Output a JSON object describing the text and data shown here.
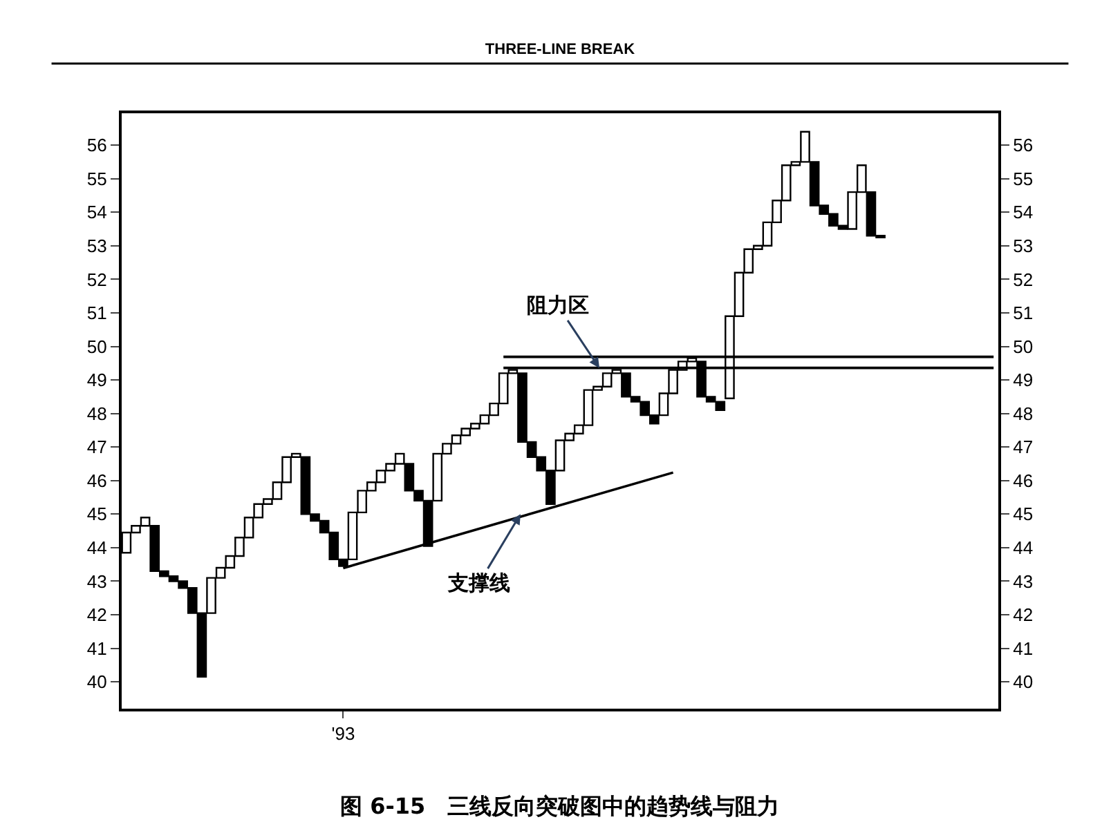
{
  "chart_data": {
    "type": "bar",
    "title": "THREE-LINE BREAK",
    "categories": [
      null,
      null,
      null,
      null,
      null,
      null,
      null,
      null,
      null,
      null,
      null,
      null,
      null,
      null,
      null,
      null,
      null,
      null,
      null,
      null,
      null,
      null,
      null,
      "'93",
      null,
      null,
      null,
      null,
      null,
      null,
      null,
      null,
      null,
      null,
      null,
      null,
      null,
      null,
      null,
      null,
      null,
      null,
      null,
      null,
      null,
      null,
      null,
      null,
      null,
      null,
      null,
      null,
      null,
      null,
      null,
      null,
      null,
      null,
      null,
      null,
      null,
      null,
      null,
      null,
      null,
      null,
      null,
      null,
      null,
      null,
      null,
      null,
      null,
      null,
      null,
      null,
      null,
      null,
      null,
      null,
      null,
      null,
      null,
      null,
      null,
      null,
      null,
      null,
      null,
      null,
      null,
      null,
      null
    ],
    "series": [
      {
        "base": [
          43.85,
          44.45,
          44.65,
          43.3,
          43.15,
          43.0,
          42.8,
          42.05,
          40.15,
          42.05,
          43.1,
          43.4,
          43.75,
          44.3,
          44.9,
          45.3,
          45.45,
          45.95,
          46.7,
          45.0,
          44.8,
          44.45,
          43.65,
          43.45,
          43.65,
          45.05,
          45.7,
          45.95,
          46.3,
          46.5,
          45.7,
          45.4,
          44.05,
          45.4,
          46.8,
          47.1,
          47.35,
          47.55,
          47.7,
          47.95,
          48.3,
          49.2,
          47.15,
          46.7,
          46.3,
          45.3,
          46.3,
          47.2,
          47.4,
          47.65,
          48.7,
          48.8,
          49.2,
          48.5,
          48.35,
          47.95,
          47.7,
          47.95,
          48.6,
          49.3,
          49.55,
          48.5,
          48.35,
          48.1,
          48.45,
          50.9,
          52.2,
          52.9,
          53.0,
          53.7,
          54.35,
          55.4,
          55.5,
          54.2,
          53.95,
          53.6,
          53.5,
          53.5,
          54.6,
          53.3,
          53.25,
          null,
          null,
          null,
          null,
          null,
          null,
          null,
          null,
          null,
          null,
          null,
          null
        ],
        "values": [
          0.6,
          0.2,
          0.25,
          1.35,
          0.15,
          0.15,
          0.2,
          0.75,
          1.9,
          1.05,
          0.3,
          0.35,
          0.55,
          0.6,
          0.4,
          0.15,
          0.5,
          0.75,
          0.1,
          1.7,
          0.2,
          0.35,
          0.8,
          0.2,
          1.4,
          0.65,
          0.25,
          0.35,
          0.2,
          0.3,
          0.8,
          0.3,
          1.35,
          1.4,
          0.3,
          0.25,
          0.2,
          0.15,
          0.25,
          0.35,
          0.9,
          0.1,
          2.05,
          0.45,
          0.4,
          1.0,
          0.9,
          0.2,
          0.25,
          1.05,
          0.1,
          0.4,
          0.1,
          0.7,
          0.15,
          0.4,
          0.25,
          0.65,
          0.7,
          0.25,
          0.1,
          1.05,
          0.15,
          0.25,
          2.45,
          1.3,
          0.7,
          0.1,
          0.7,
          0.65,
          1.05,
          0.1,
          0.9,
          1.3,
          0.25,
          0.35,
          0.1,
          1.1,
          0.8,
          1.3,
          0.05,
          null,
          null,
          null,
          null,
          null,
          null,
          null,
          null,
          null,
          null,
          null,
          null
        ],
        "colors": [
          "#ffffff",
          "#ffffff",
          "#ffffff",
          "#000000",
          "#000000",
          "#000000",
          "#000000",
          "#000000",
          "#000000",
          "#ffffff",
          "#ffffff",
          "#ffffff",
          "#ffffff",
          "#ffffff",
          "#ffffff",
          "#ffffff",
          "#ffffff",
          "#ffffff",
          "#ffffff",
          "#000000",
          "#000000",
          "#000000",
          "#000000",
          "#000000",
          "#ffffff",
          "#ffffff",
          "#ffffff",
          "#ffffff",
          "#ffffff",
          "#ffffff",
          "#000000",
          "#000000",
          "#000000",
          "#ffffff",
          "#ffffff",
          "#ffffff",
          "#ffffff",
          "#ffffff",
          "#ffffff",
          "#ffffff",
          "#ffffff",
          "#ffffff",
          "#000000",
          "#000000",
          "#000000",
          "#000000",
          "#ffffff",
          "#ffffff",
          "#ffffff",
          "#ffffff",
          "#ffffff",
          "#ffffff",
          "#ffffff",
          "#000000",
          "#000000",
          "#000000",
          "#000000",
          "#ffffff",
          "#ffffff",
          "#ffffff",
          "#ffffff",
          "#000000",
          "#000000",
          "#000000",
          "#ffffff",
          "#ffffff",
          "#ffffff",
          "#ffffff",
          "#ffffff",
          "#ffffff",
          "#ffffff",
          "#ffffff",
          "#ffffff",
          "#000000",
          "#000000",
          "#000000",
          "#000000",
          "#ffffff",
          "#ffffff",
          "#000000",
          "#000000",
          "#ffffff",
          "#ffffff",
          "#ffffff",
          "#ffffff",
          "#ffffff",
          "#ffffff",
          "#ffffff",
          "#ffffff",
          "#ffffff",
          "#ffffff",
          "#ffffff",
          "#ffffff"
        ]
      },
      {
        "type": "line",
        "color": "#000000",
        "values": [
          null,
          null,
          null,
          null,
          null,
          null,
          null,
          null,
          null,
          null,
          null,
          null,
          null,
          null,
          null,
          null,
          null,
          null,
          null,
          null,
          null,
          null,
          null,
          43.39,
          null,
          null,
          null,
          null,
          null,
          null,
          null,
          null,
          null,
          null,
          null,
          null,
          null,
          null,
          null,
          null,
          null,
          null,
          null,
          null,
          null,
          null,
          null,
          null,
          null,
          null,
          null,
          null,
          null,
          null,
          null,
          null,
          null,
          null,
          46.24,
          null,
          null,
          null,
          null,
          null,
          null,
          null,
          null,
          null,
          null,
          null,
          null,
          null,
          null,
          null,
          null,
          null,
          null,
          null,
          null,
          null,
          null,
          null,
          null,
          null,
          null,
          null,
          null,
          null,
          null,
          null,
          null,
          null,
          null
        ]
      },
      {
        "type": "line",
        "color": "#000000",
        "values": [
          null,
          null,
          null,
          null,
          null,
          null,
          null,
          null,
          null,
          null,
          null,
          null,
          null,
          null,
          null,
          null,
          null,
          null,
          null,
          null,
          null,
          null,
          null,
          null,
          null,
          null,
          null,
          null,
          null,
          null,
          null,
          null,
          null,
          null,
          null,
          null,
          null,
          null,
          null,
          null,
          49.69,
          null,
          null,
          null,
          null,
          null,
          null,
          null,
          null,
          null,
          null,
          null,
          null,
          null,
          null,
          null,
          null,
          null,
          null,
          null,
          null,
          null,
          null,
          null,
          null,
          null,
          null,
          null,
          null,
          null,
          null,
          null,
          null,
          null,
          null,
          null,
          null,
          null,
          null,
          null,
          null,
          null,
          null,
          null,
          null,
          null,
          null,
          null,
          null,
          null,
          null,
          null,
          49.69
        ]
      },
      {
        "type": "line",
        "color": "#000000",
        "values": [
          null,
          null,
          null,
          null,
          null,
          null,
          null,
          null,
          null,
          null,
          null,
          null,
          null,
          null,
          null,
          null,
          null,
          null,
          null,
          null,
          null,
          null,
          null,
          null,
          null,
          null,
          null,
          null,
          null,
          null,
          null,
          null,
          null,
          null,
          null,
          null,
          null,
          null,
          null,
          null,
          49.36,
          null,
          null,
          null,
          null,
          null,
          null,
          null,
          null,
          null,
          null,
          null,
          null,
          null,
          null,
          null,
          null,
          null,
          null,
          null,
          null,
          null,
          null,
          null,
          null,
          null,
          null,
          null,
          null,
          null,
          null,
          null,
          null,
          null,
          null,
          null,
          null,
          null,
          null,
          null,
          null,
          null,
          null,
          null,
          null,
          null,
          null,
          null,
          null,
          null,
          null,
          null,
          49.36
        ]
      }
    ],
    "ylim": [
      39.2,
      56.95
    ],
    "yticks": [
      40,
      41,
      42,
      43,
      44,
      45,
      46,
      47,
      48,
      49,
      50,
      51,
      52,
      53,
      54,
      55,
      56
    ],
    "y2lim": [
      39.2,
      56.95
    ],
    "y2ticks": [
      40,
      41,
      42,
      43,
      44,
      45,
      46,
      47,
      48,
      49,
      50,
      51,
      52,
      53,
      54,
      55,
      56
    ],
    "annotations": [
      "阻力区",
      "支撑线",
      "图 6-15　三线反向突破图中的趋势线与阻力"
    ]
  }
}
